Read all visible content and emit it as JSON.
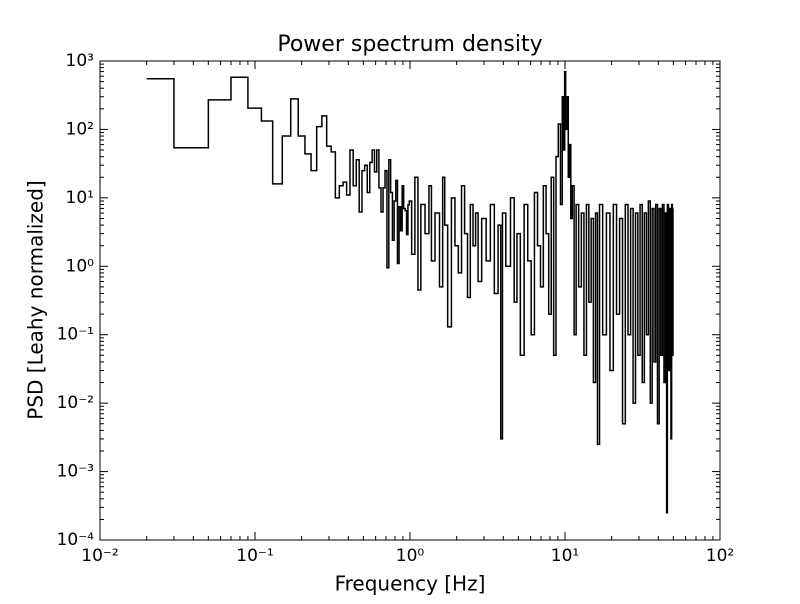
{
  "chart_data": {
    "type": "line",
    "drawstyle": "steps-mid",
    "log_x": true,
    "log_y": true,
    "color": "#000000",
    "title": "Power spectrum density",
    "xlabel": "Frequency [Hz]",
    "ylabel": "PSD [Leahy normalized]",
    "xlim": [
      0.01,
      100
    ],
    "ylim": [
      0.0001,
      1000
    ],
    "xticks": [
      {
        "value": 0.01,
        "label": "10⁻²"
      },
      {
        "value": 0.1,
        "label": "10⁻¹"
      },
      {
        "value": 1,
        "label": "10⁰"
      },
      {
        "value": 10,
        "label": "10¹"
      },
      {
        "value": 100,
        "label": "10²"
      }
    ],
    "yticks": [
      {
        "value": 0.0001,
        "label": "10⁻⁴"
      },
      {
        "value": 0.001,
        "label": "10⁻³"
      },
      {
        "value": 0.01,
        "label": "10⁻²"
      },
      {
        "value": 0.1,
        "label": "10⁻¹"
      },
      {
        "value": 1,
        "label": "10⁰"
      },
      {
        "value": 10,
        "label": "10¹"
      },
      {
        "value": 100,
        "label": "10²"
      },
      {
        "value": 1000,
        "label": "10³"
      }
    ],
    "x": [
      0.02,
      0.04,
      0.06,
      0.08,
      0.1,
      0.12,
      0.14,
      0.16,
      0.18,
      0.2,
      0.22,
      0.24,
      0.26,
      0.28,
      0.3,
      0.32,
      0.34,
      0.36,
      0.38,
      0.4,
      0.42,
      0.44,
      0.46,
      0.48,
      0.5,
      0.52,
      0.54,
      0.56,
      0.58,
      0.6,
      0.62,
      0.64,
      0.66,
      0.68,
      0.7,
      0.72,
      0.74,
      0.76,
      0.78,
      0.8,
      0.82,
      0.84,
      0.86,
      0.88,
      0.9,
      0.92,
      0.94,
      0.96,
      0.98,
      1.0,
      1.05,
      1.1,
      1.15,
      1.2,
      1.3,
      1.35,
      1.4,
      1.5,
      1.6,
      1.65,
      1.7,
      1.8,
      1.9,
      2.0,
      2.1,
      2.2,
      2.3,
      2.4,
      2.5,
      2.6,
      2.7,
      2.8,
      3.0,
      3.2,
      3.4,
      3.6,
      3.8,
      3.9,
      4.0,
      4.3,
      4.6,
      4.8,
      5.0,
      5.3,
      5.6,
      5.9,
      6.2,
      6.5,
      6.8,
      7.1,
      7.4,
      7.7,
      8.0,
      8.3,
      8.6,
      8.9,
      9.2,
      9.5,
      9.7,
      9.9,
      10.0,
      10.2,
      10.4,
      10.6,
      10.8,
      11.0,
      11.3,
      11.6,
      12.0,
      12.5,
      13.0,
      13.5,
      14.0,
      14.5,
      15.0,
      15.5,
      16.0,
      16.4,
      17,
      18,
      19,
      20,
      21,
      22,
      23,
      24,
      25,
      26,
      27,
      28,
      29,
      30,
      31,
      32,
      33,
      34,
      35,
      36,
      37,
      38,
      39,
      40,
      41,
      42,
      43,
      44,
      45,
      45.5,
      46,
      47,
      48,
      48.5,
      49,
      49.5,
      50
    ],
    "values": [
      550,
      54,
      270,
      580,
      205,
      133,
      16,
      80,
      280,
      80,
      44,
      25,
      110,
      158,
      57,
      47,
      10,
      15,
      17,
      11,
      50,
      15,
      36,
      6.2,
      25,
      30,
      12,
      33,
      50,
      24,
      50,
      14,
      6.2,
      14,
      25,
      0.95,
      36,
      12,
      2.4,
      9,
      18,
      1.1,
      7.4,
      3.3,
      15,
      7,
      6.5,
      2.9,
      7.9,
      9,
      1.5,
      20,
      0.45,
      8,
      3,
      15,
      1.2,
      6,
      0.5,
      20,
      4,
      0.13,
      10,
      2,
      0.8,
      15,
      3,
      0.35,
      8,
      2,
      6,
      0.6,
      5,
      1.2,
      8,
      0.4,
      4,
      0.003,
      6,
      1,
      10,
      0.3,
      3,
      0.05,
      8,
      1.2,
      0.1,
      12,
      2,
      0.5,
      15,
      3,
      0.2,
      20,
      0.05,
      40,
      120,
      8,
      300,
      50,
      700,
      100,
      300,
      20,
      60,
      5,
      15,
      0.1,
      8,
      0.5,
      6,
      0.05,
      8,
      0.3,
      5,
      0.02,
      6,
      0.0025,
      8,
      0.1,
      6,
      0.03,
      8,
      0.2,
      5,
      0.005,
      8,
      0.1,
      7,
      0.01,
      6,
      0.05,
      8,
      0.02,
      6,
      0.1,
      9,
      0.01,
      7,
      0.04,
      8,
      0.005,
      7,
      0.05,
      8,
      0.02,
      6,
      0.00025,
      8,
      0.03,
      7,
      0.003,
      8,
      0.05,
      7
    ]
  }
}
